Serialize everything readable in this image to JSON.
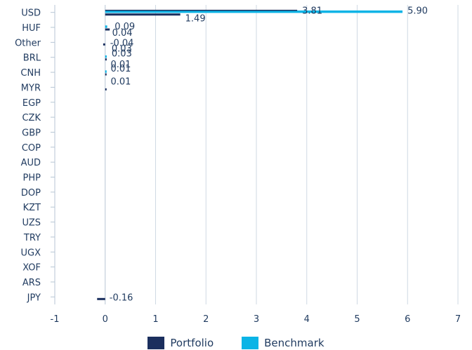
{
  "chart_data": {
    "type": "bar",
    "orientation": "horizontal",
    "categories": [
      "USD",
      "HUF",
      "Other",
      "BRL",
      "CNH",
      "MYR",
      "EGP",
      "CZK",
      "GBP",
      "COP",
      "AUD",
      "PHP",
      "DOP",
      "KZT",
      "UZS",
      "TRY",
      "UGX",
      "XOF",
      "ARS",
      "JPY"
    ],
    "series": [
      {
        "name": "Portfolio",
        "color": "#1b2f5e",
        "values": [
          1.49,
          0.09,
          -0.04,
          0.03,
          0.01,
          0.01,
          0,
          0,
          0,
          0,
          0,
          0,
          0,
          0,
          0,
          0,
          0,
          0,
          0,
          -0.16
        ]
      },
      {
        "name": "Benchmark",
        "color": "#0bb4e6",
        "values": [
          5.9,
          0.04,
          0,
          0.03,
          0.01,
          0,
          0,
          0,
          0,
          0,
          0,
          0,
          0,
          0,
          0,
          0,
          0,
          0,
          0,
          0
        ]
      },
      {
        "name": "",
        "color": "#1b2f5e",
        "values": [
          3.81,
          0,
          0,
          0,
          0,
          0,
          0,
          0,
          0,
          0,
          0,
          0,
          0,
          0,
          0,
          0,
          0,
          0,
          0,
          0
        ]
      }
    ],
    "labels": [
      {
        "category": "USD",
        "text": "3.81",
        "value": 3.81
      },
      {
        "category": "USD",
        "text": "5.90",
        "value": 5.9
      },
      {
        "category": "USD",
        "text": "1.49",
        "value": 1.49
      },
      {
        "category": "HUF",
        "text": "0.09",
        "value": 0.09
      },
      {
        "category": "HUF",
        "text": "0.04",
        "value": 0.04
      },
      {
        "category": "Other",
        "text": "-0.04",
        "value": -0.04
      },
      {
        "category": "BRL",
        "text": "0.03",
        "value": 0.03
      },
      {
        "category": "BRL",
        "text": "0.03",
        "value": 0.03
      },
      {
        "category": "CNH",
        "text": "0.01",
        "value": 0.01
      },
      {
        "category": "CNH",
        "text": "0.01",
        "value": 0.01
      },
      {
        "category": "MYR",
        "text": "0.01",
        "value": 0.01
      },
      {
        "category": "JPY",
        "text": "-0.16",
        "value": -0.16
      }
    ],
    "xticks": [
      "-1",
      "0",
      "1",
      "2",
      "3",
      "4",
      "5",
      "6",
      "7"
    ],
    "xlim": [
      -1,
      7
    ],
    "grid": true,
    "legend_position": "bottom",
    "legend": [
      {
        "name": "Portfolio",
        "color": "#1b2f5e"
      },
      {
        "name": "Benchmark",
        "color": "#0bb4e6"
      }
    ]
  }
}
